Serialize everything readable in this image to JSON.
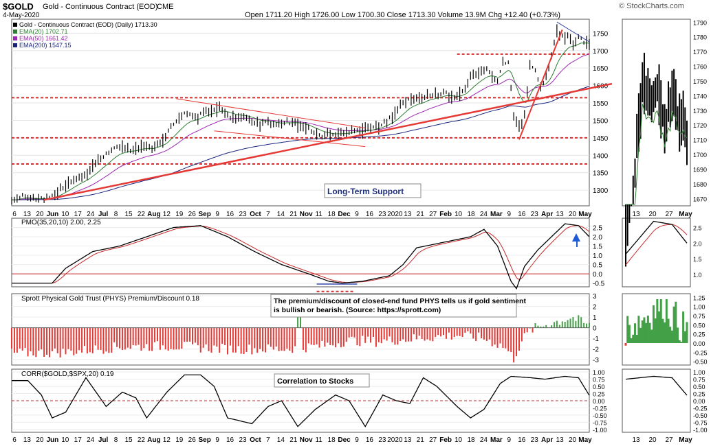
{
  "header": {
    "symbol": "$GOLD",
    "name": "Gold - Continuous Contract (EOD)",
    "exchange": "CME",
    "date": "4-May-2020",
    "quote": "Open 1711.20  High 1726.00  Low 1700.30  Close 1713.30  Volume 13.9M  Chg +12.40 (+0.73%)",
    "watermark": "© StockCharts.com"
  },
  "colors": {
    "price": "#000000",
    "ema20": "#2e7d32",
    "ema50": "#9c27b0",
    "ema200": "#1a237e",
    "trend": "#e53935",
    "dashed": "#d32f2f",
    "pos_bar": "#43a047",
    "neg_bar": "#e53935",
    "callout": "#1f2f7a",
    "arrow": "#1e5bd6"
  },
  "panels": {
    "price": {
      "legend": [
        {
          "text": "Gold - Continuous Contract (EOD) (Daily) 1713.30",
          "color": "#000000"
        },
        {
          "text": "EMA(20) 1702.71",
          "color": "#2e7d32"
        },
        {
          "text": "EMA(50) 1661.42",
          "color": "#9c27b0"
        },
        {
          "text": "EMA(200) 1547.15",
          "color": "#1a237e"
        }
      ],
      "right_ticks": [
        1750,
        1700,
        1650,
        1600,
        1550,
        1500,
        1450,
        1400,
        1350,
        1300
      ],
      "annotation": "Long-Term Support"
    },
    "pmo": {
      "legend": "PMO(35,20,10) 2.00, 2.25",
      "right_ticks": [
        "2.5",
        "2.0",
        "1.5",
        "1.0",
        "0.5",
        "0.0",
        "-0.5"
      ]
    },
    "phys": {
      "legend": "Sprott Physical Gold Trust (PHYS) Premium/Discount 0.18",
      "note": "The premium/discount of closed-end fund PHYS tells us if gold sentiment is bullish or bearish. (Source: https://sprott.com)",
      "right_ticks": [
        "3",
        "2",
        "1",
        "0",
        "-1",
        "-2",
        "-3"
      ]
    },
    "corr": {
      "legend": "CORR($GOLD,$SPX,20) 0.19",
      "note": "Correlation to Stocks",
      "right_ticks": [
        "1.00",
        "0.75",
        "0.50",
        "0.25",
        "0.00",
        "-0.25",
        "-0.50",
        "-0.75",
        "-1.00"
      ]
    }
  },
  "x_axis": {
    "labels": [
      "6",
      "13",
      "20",
      "Jun",
      "10",
      "17",
      "24",
      "Jul",
      "8",
      "15",
      "22",
      "Aug",
      "12",
      "19",
      "26",
      "Sep",
      "9",
      "16",
      "23",
      "Oct",
      "7",
      "14",
      "21",
      "Nov",
      "11",
      "18",
      "Dec",
      "9",
      "16",
      "23",
      "2020",
      "13",
      "21",
      "27",
      "Feb",
      "10",
      "18",
      "24",
      "Mar",
      "9",
      "16",
      "23",
      "Apr",
      "13",
      "20",
      "May"
    ]
  },
  "zoom": {
    "price_ticks": [
      "1790",
      "1780",
      "1770",
      "1760",
      "1750",
      "1740",
      "1730",
      "1720",
      "1710",
      "1700",
      "1690",
      "1680",
      "1670"
    ],
    "pmo_ticks": [
      "2.5",
      "2.0",
      "1.5",
      "1.0"
    ],
    "phys_ticks": [
      "1.25",
      "1.00",
      "0.75",
      "0.50",
      "0.25",
      "0.00",
      "-0.25",
      "-0.50"
    ],
    "corr_ticks": [
      "1.00",
      "0.75",
      "0.50",
      "0.25",
      "0.00",
      "-0.25",
      "-0.50",
      "-0.75",
      "-1.00"
    ],
    "x_labels": [
      "13",
      "20",
      "27",
      "May"
    ]
  },
  "chart_data": {
    "type": "line",
    "title": "$GOLD Gold - Continuous Contract (EOD) CME",
    "ylim": [
      1255,
      1790
    ],
    "close_anchors": [
      [
        0,
        1272
      ],
      [
        8,
        1285
      ],
      [
        16,
        1274
      ],
      [
        24,
        1275
      ],
      [
        30,
        1282
      ],
      [
        38,
        1310
      ],
      [
        46,
        1330
      ],
      [
        54,
        1345
      ],
      [
        60,
        1365
      ],
      [
        66,
        1390
      ],
      [
        72,
        1410
      ],
      [
        80,
        1425
      ],
      [
        88,
        1415
      ],
      [
        96,
        1425
      ],
      [
        104,
        1420
      ],
      [
        112,
        1445
      ],
      [
        118,
        1480
      ],
      [
        124,
        1510
      ],
      [
        130,
        1523
      ],
      [
        136,
        1510
      ],
      [
        142,
        1525
      ],
      [
        148,
        1530
      ],
      [
        154,
        1540
      ],
      [
        160,
        1515
      ],
      [
        166,
        1505
      ],
      [
        172,
        1510
      ],
      [
        178,
        1495
      ],
      [
        184,
        1488
      ],
      [
        190,
        1498
      ],
      [
        196,
        1485
      ],
      [
        202,
        1495
      ],
      [
        210,
        1495
      ],
      [
        218,
        1480
      ],
      [
        224,
        1465
      ],
      [
        232,
        1455
      ],
      [
        240,
        1460
      ],
      [
        246,
        1465
      ],
      [
        254,
        1470
      ],
      [
        262,
        1475
      ],
      [
        270,
        1480
      ],
      [
        278,
        1500
      ],
      [
        284,
        1520
      ],
      [
        290,
        1555
      ],
      [
        296,
        1560
      ],
      [
        302,
        1560
      ],
      [
        308,
        1570
      ],
      [
        316,
        1575
      ],
      [
        322,
        1580
      ],
      [
        328,
        1565
      ],
      [
        334,
        1580
      ],
      [
        340,
        1620
      ],
      [
        346,
        1640
      ],
      [
        352,
        1645
      ],
      [
        360,
        1615
      ],
      [
        364,
        1665
      ],
      [
        368,
        1670
      ],
      [
        372,
        1520
      ],
      [
        376,
        1480
      ],
      [
        380,
        1510
      ],
      [
        384,
        1660
      ],
      [
        388,
        1640
      ],
      [
        392,
        1600
      ],
      [
        396,
        1620
      ],
      [
        400,
        1690
      ],
      [
        404,
        1755
      ],
      [
        408,
        1740
      ],
      [
        412,
        1745
      ],
      [
        416,
        1718
      ],
      [
        420,
        1735
      ],
      [
        424,
        1725
      ],
      [
        428,
        1713
      ]
    ],
    "n": 429,
    "series": [
      {
        "name": "Gold - Continuous Contract (EOD) (Daily)",
        "last": 1713.3
      },
      {
        "name": "EMA(20)",
        "last": 1702.71
      },
      {
        "name": "EMA(50)",
        "last": 1661.42
      },
      {
        "name": "EMA(200)",
        "last": 1547.15
      }
    ],
    "support_lines": [
      1565,
      1450,
      1375
    ],
    "resistance_line": 1690,
    "pmo": {
      "ylim": [
        -0.7,
        3.0
      ],
      "last": 2.0,
      "signal": 2.25,
      "anchors": [
        [
          0,
          -0.5
        ],
        [
          30,
          -0.5
        ],
        [
          40,
          0.3
        ],
        [
          60,
          1.2
        ],
        [
          80,
          1.5
        ],
        [
          100,
          2.0
        ],
        [
          120,
          2.5
        ],
        [
          140,
          2.6
        ],
        [
          160,
          2.0
        ],
        [
          180,
          1.2
        ],
        [
          200,
          0.5
        ],
        [
          220,
          0.0
        ],
        [
          235,
          -0.4
        ],
        [
          245,
          -0.5
        ],
        [
          260,
          -0.4
        ],
        [
          280,
          -0.1
        ],
        [
          290,
          0.5
        ],
        [
          300,
          1.4
        ],
        [
          320,
          1.7
        ],
        [
          340,
          2.0
        ],
        [
          350,
          2.4
        ],
        [
          360,
          1.5
        ],
        [
          370,
          -0.4
        ],
        [
          374,
          -0.8
        ],
        [
          380,
          0.4
        ],
        [
          390,
          1.3
        ],
        [
          400,
          2.0
        ],
        [
          410,
          2.7
        ],
        [
          420,
          2.6
        ],
        [
          428,
          2.0
        ]
      ]
    },
    "phys": {
      "ylim": [
        -3.5,
        3.2
      ],
      "last": 0.18,
      "anchors": [
        [
          0,
          -2.4
        ],
        [
          40,
          -2.3
        ],
        [
          80,
          -1.8
        ],
        [
          120,
          -1.7
        ],
        [
          160,
          -2.0
        ],
        [
          200,
          -2.0
        ],
        [
          230,
          -1.7
        ],
        [
          250,
          -1.2
        ],
        [
          270,
          -1.3
        ],
        [
          290,
          -1.1
        ],
        [
          310,
          -0.9
        ],
        [
          330,
          -0.7
        ],
        [
          350,
          -1.0
        ],
        [
          365,
          -1.8
        ],
        [
          372,
          -2.9
        ],
        [
          378,
          -1.2
        ],
        [
          385,
          -0.2
        ],
        [
          395,
          0.3
        ],
        [
          405,
          0.6
        ],
        [
          415,
          1.0
        ],
        [
          428,
          0.18
        ]
      ]
    },
    "corr": {
      "ylim": [
        -1.1,
        1.1
      ],
      "last": 0.19,
      "anchors": [
        [
          0,
          0.7
        ],
        [
          12,
          0.7
        ],
        [
          22,
          0.2
        ],
        [
          30,
          -0.6
        ],
        [
          40,
          -0.4
        ],
        [
          55,
          0.8
        ],
        [
          70,
          -0.2
        ],
        [
          82,
          0.3
        ],
        [
          92,
          0.1
        ],
        [
          100,
          -0.6
        ],
        [
          115,
          0.3
        ],
        [
          128,
          0.9
        ],
        [
          140,
          0.9
        ],
        [
          150,
          0.5
        ],
        [
          160,
          -0.6
        ],
        [
          178,
          -0.8
        ],
        [
          190,
          -0.2
        ],
        [
          200,
          0.0
        ],
        [
          212,
          -0.9
        ],
        [
          225,
          -0.3
        ],
        [
          240,
          0.2
        ],
        [
          250,
          0.0
        ],
        [
          262,
          -0.9
        ],
        [
          275,
          0.2
        ],
        [
          285,
          0.0
        ],
        [
          295,
          -0.1
        ],
        [
          305,
          0.8
        ],
        [
          315,
          0.5
        ],
        [
          330,
          -0.2
        ],
        [
          340,
          -0.6
        ],
        [
          350,
          -0.3
        ],
        [
          362,
          0.6
        ],
        [
          370,
          0.85
        ],
        [
          385,
          0.8
        ],
        [
          395,
          0.75
        ],
        [
          410,
          0.85
        ],
        [
          420,
          0.8
        ],
        [
          428,
          0.19
        ]
      ]
    }
  }
}
